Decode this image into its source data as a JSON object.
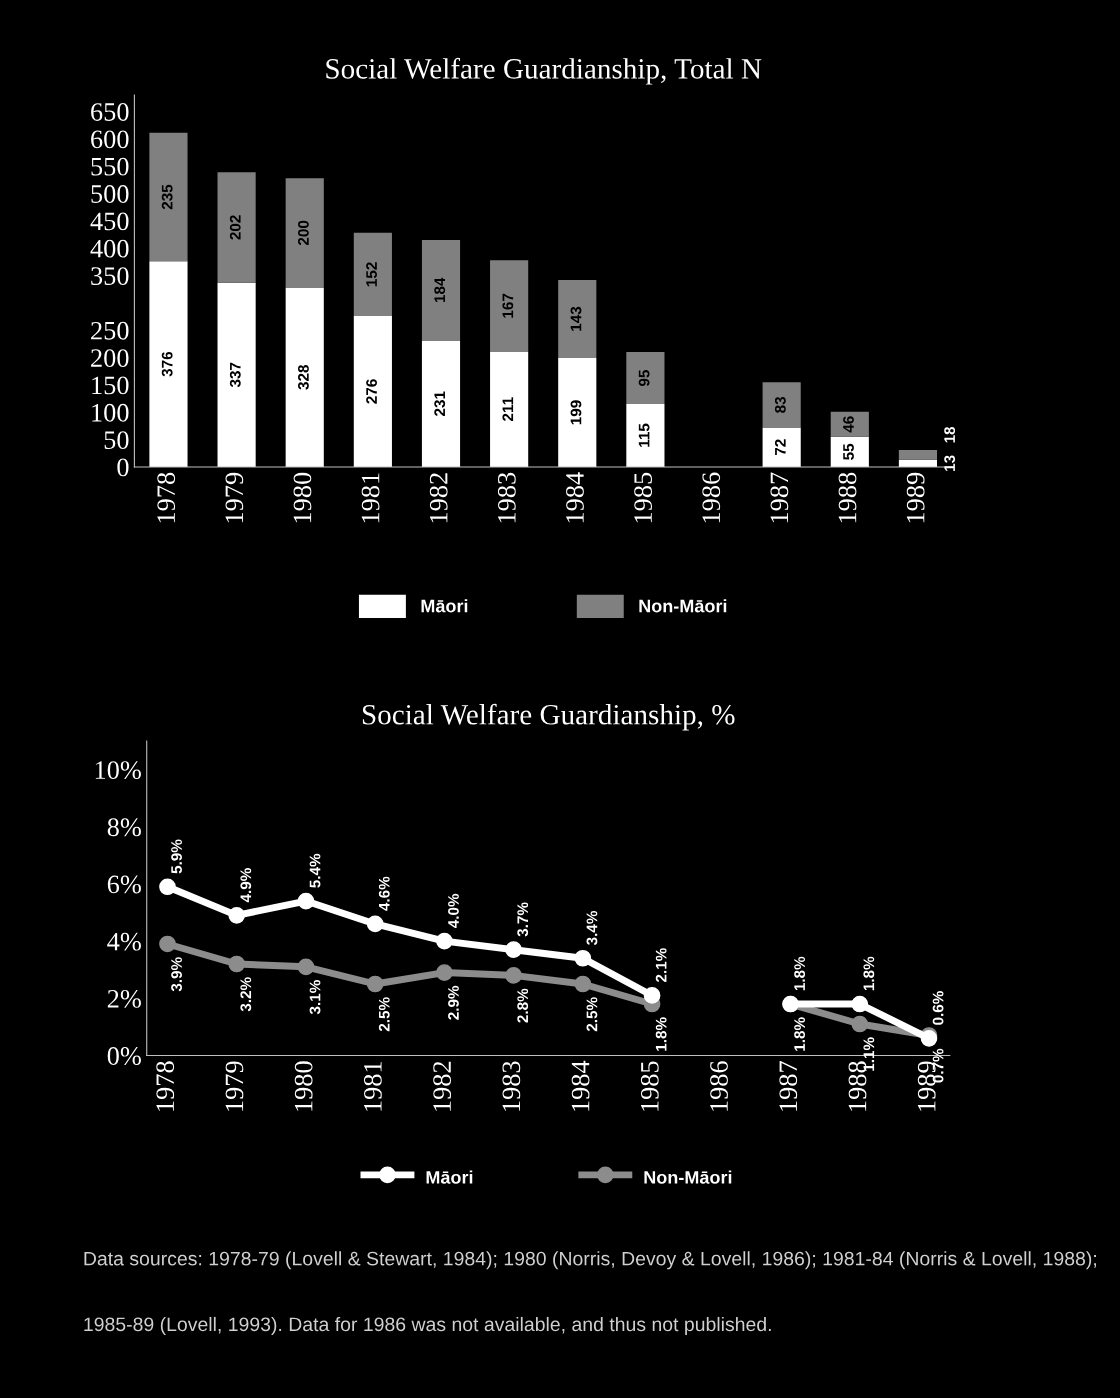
{
  "chart_data": [
    {
      "type": "bar",
      "stacked": true,
      "title": "Social Welfare Guardianship, Total N",
      "categories": [
        "1978",
        "1979",
        "1980",
        "1981",
        "1982",
        "1983",
        "1984",
        "1985",
        "1986",
        "1987",
        "1988",
        "1989"
      ],
      "series": [
        {
          "name": "Māori",
          "color": "#ffffff",
          "values": [
            376,
            337,
            328,
            276,
            231,
            211,
            199,
            115,
            null,
            72,
            55,
            13
          ]
        },
        {
          "name": "Non-Māori",
          "color": "#808080",
          "values": [
            235,
            202,
            200,
            152,
            184,
            167,
            143,
            95,
            null,
            83,
            46,
            18
          ]
        }
      ],
      "ylim": [
        0,
        680
      ],
      "yticks": [
        0,
        50,
        100,
        150,
        200,
        250,
        350,
        400,
        450,
        500,
        550,
        600,
        650
      ],
      "data_labels": true,
      "legend": "bottom",
      "grid": false
    },
    {
      "type": "line",
      "title": "Social Welfare Guardianship, %",
      "categories": [
        "1978",
        "1979",
        "1980",
        "1981",
        "1982",
        "1983",
        "1984",
        "1985",
        "1986",
        "1987",
        "1988",
        "1989"
      ],
      "series": [
        {
          "name": "Māori",
          "color": "#ffffff",
          "values": [
            5.9,
            4.9,
            5.4,
            4.6,
            4.0,
            3.7,
            3.4,
            2.1,
            null,
            1.8,
            1.8,
            0.6
          ],
          "value_labels": [
            "5.9%",
            "4.9%",
            "5.4%",
            "4.6%",
            "4.0%",
            "3.7%",
            "3.4%",
            "2.1%",
            null,
            "1.8%",
            "1.8%",
            "0.6%"
          ]
        },
        {
          "name": "Non-Māori",
          "color": "#8c8c8c",
          "values": [
            3.9,
            3.2,
            3.1,
            2.5,
            2.9,
            2.8,
            2.5,
            1.8,
            null,
            1.8,
            1.1,
            0.7
          ],
          "value_labels": [
            "3.9%",
            "3.2%",
            "3.1%",
            "2.5%",
            "2.9%",
            "2.8%",
            "2.5%",
            "1.8%",
            null,
            "1.8%",
            "1.1%",
            "0.7%"
          ]
        }
      ],
      "ylim": [
        0,
        11
      ],
      "yticks": [
        {
          "value": 0,
          "label": "0%"
        },
        {
          "value": 2,
          "label": "2%"
        },
        {
          "value": 4,
          "label": "4%"
        },
        {
          "value": 6,
          "label": "6%"
        },
        {
          "value": 8,
          "label": "8%"
        },
        {
          "value": 10,
          "label": "10%"
        }
      ],
      "legend": "bottom",
      "grid": false,
      "marker": "circle",
      "line_style": "solid",
      "annotations": [
        "Data sources: 1978-79 (Lovell & Stewart, 1984); 1980 (Norris, Devoy & Lovell, 1986); 1981-84 (Norris & Lovell, 1988);",
        "1985-89 (Lovell, 1993). Data for 1986 was not available, and thus not published."
      ]
    }
  ]
}
